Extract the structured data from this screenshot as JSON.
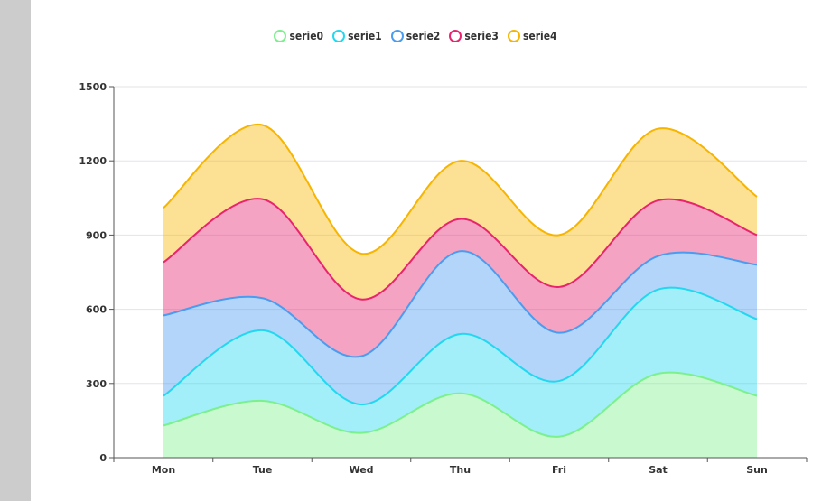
{
  "chart_data": {
    "type": "area",
    "stacked": true,
    "smooth": true,
    "categories": [
      "Mon",
      "Tue",
      "Wed",
      "Thu",
      "Fri",
      "Sat",
      "Sun"
    ],
    "series": [
      {
        "name": "serie0",
        "color": "#7cf08c",
        "values": [
          130,
          230,
          100,
          260,
          85,
          340,
          250
        ]
      },
      {
        "name": "serie1",
        "color": "#22d8f0",
        "values": [
          120,
          285,
          115,
          240,
          225,
          340,
          310
        ]
      },
      {
        "name": "serie2",
        "color": "#4a9cf0",
        "values": [
          325,
          130,
          195,
          335,
          195,
          135,
          220
        ]
      },
      {
        "name": "serie3",
        "color": "#e8246f",
        "values": [
          215,
          400,
          230,
          130,
          185,
          225,
          120
        ]
      },
      {
        "name": "serie4",
        "color": "#f7b500",
        "values": [
          220,
          300,
          185,
          235,
          210,
          290,
          155
        ]
      }
    ],
    "yaxis": {
      "min": 0,
      "max": 1500,
      "ticks": [
        "0",
        "300",
        "600",
        "900",
        "1200",
        "1500"
      ]
    },
    "legend_position": "top-center",
    "grid": true
  }
}
